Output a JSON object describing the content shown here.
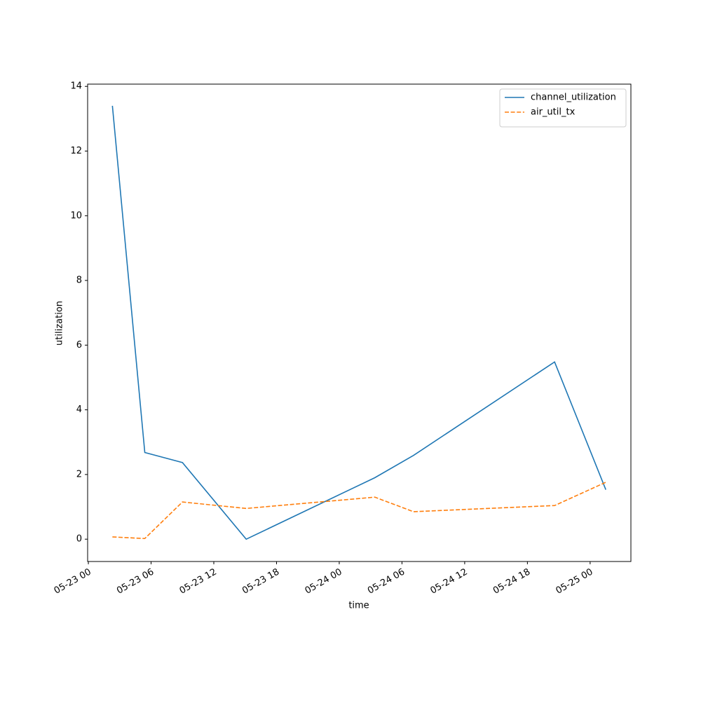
{
  "chart_data": {
    "type": "line",
    "x_label": "time",
    "y_label": "utilization",
    "x": [
      2.3,
      5.4,
      9.0,
      15.1,
      27.4,
      31.1,
      44.6,
      49.5
    ],
    "series": [
      {
        "name": "channel_utilization",
        "color": "#1f77b4",
        "dash": "solid",
        "values": [
          13.4,
          2.68,
          2.37,
          0.0,
          1.9,
          2.59,
          5.48,
          1.53
        ]
      },
      {
        "name": "air_util_tx",
        "color": "#ff7f0e",
        "dash": "dashed",
        "values": [
          0.07,
          0.02,
          1.15,
          0.95,
          1.3,
          0.85,
          1.04,
          1.76
        ]
      }
    ],
    "xlim": [
      -0.07,
      51.9
    ],
    "xticks": [
      {
        "value": 0,
        "label": "05-23 00"
      },
      {
        "value": 6,
        "label": "05-23 06"
      },
      {
        "value": 12,
        "label": "05-23 12"
      },
      {
        "value": 18,
        "label": "05-23 18"
      },
      {
        "value": 24,
        "label": "05-24 00"
      },
      {
        "value": 30,
        "label": "05-24 06"
      },
      {
        "value": 36,
        "label": "05-24 12"
      },
      {
        "value": 42,
        "label": "05-24 18"
      },
      {
        "value": 48,
        "label": "05-25 00"
      }
    ],
    "ylim": [
      -0.69,
      14.07
    ],
    "yticks": [
      0,
      2,
      4,
      6,
      8,
      10,
      12,
      14
    ],
    "legend": "upper right"
  }
}
